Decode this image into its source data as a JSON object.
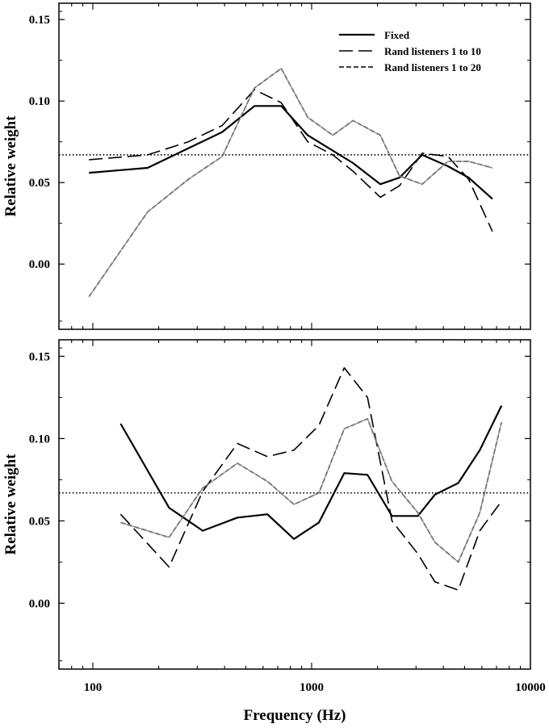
{
  "chart_data": [
    {
      "type": "line",
      "panel": "top",
      "title": "",
      "xlabel": "",
      "ylabel": "Relative weight",
      "xscale": "log",
      "xlim": [
        70,
        10000
      ],
      "ylim": [
        -0.04,
        0.16
      ],
      "yticks": [
        "0.00",
        "0.05",
        "0.10",
        "0.15"
      ],
      "xticks": [],
      "legend_position": "top-right",
      "legend": [
        "Fixed",
        "Rand listeners 1 to 10",
        "Rand listeners 1 to 20"
      ],
      "reference_line": {
        "y": 0.067,
        "style": "dotted"
      },
      "series": [
        {
          "name": "Fixed",
          "style": "solid",
          "x": [
            96,
            178,
            273,
            390,
            548,
            726,
            960,
            1545,
            2060,
            2520,
            3200,
            4200,
            5220,
            6700
          ],
          "y": [
            0.056,
            0.059,
            0.071,
            0.081,
            0.097,
            0.097,
            0.079,
            0.062,
            0.049,
            0.053,
            0.067,
            0.06,
            0.053,
            0.04
          ]
        },
        {
          "name": "Rand listeners 1 to 10",
          "style": "long-dash",
          "x": [
            96,
            178,
            273,
            390,
            548,
            726,
            960,
            1250,
            1545,
            2060,
            2520,
            3200,
            4200,
            5220,
            6700
          ],
          "y": [
            0.064,
            0.067,
            0.075,
            0.085,
            0.107,
            0.099,
            0.075,
            0.067,
            0.057,
            0.041,
            0.048,
            0.068,
            0.066,
            0.052,
            0.02
          ]
        },
        {
          "name": "Rand listeners 1 to 20",
          "style": "short-dash",
          "x": [
            96,
            178,
            273,
            390,
            548,
            726,
            960,
            1250,
            1545,
            2060,
            2520,
            3200,
            4200,
            5220,
            6700
          ],
          "y": [
            -0.02,
            0.032,
            0.052,
            0.066,
            0.108,
            0.12,
            0.09,
            0.079,
            0.088,
            0.079,
            0.054,
            0.049,
            0.063,
            0.063,
            0.059
          ]
        }
      ]
    },
    {
      "type": "line",
      "panel": "bottom",
      "title": "",
      "xlabel": "Frequency (Hz)",
      "ylabel": "Relative weight",
      "xscale": "log",
      "xlim": [
        70,
        10000
      ],
      "ylim": [
        -0.04,
        0.16
      ],
      "yticks": [
        "0.00",
        "0.05",
        "0.10",
        "0.15"
      ],
      "xticks": [
        "100",
        "1000",
        "10000"
      ],
      "reference_line": {
        "y": 0.067,
        "style": "dotted"
      },
      "series": [
        {
          "name": "Fixed",
          "style": "solid",
          "x": [
            134,
            223,
            318,
            458,
            628,
            830,
            1080,
            1410,
            1800,
            2330,
            3060,
            3660,
            4680,
            5870,
            7380
          ],
          "y": [
            0.109,
            0.058,
            0.044,
            0.052,
            0.054,
            0.039,
            0.049,
            0.079,
            0.078,
            0.053,
            0.053,
            0.066,
            0.073,
            0.093,
            0.12
          ]
        },
        {
          "name": "Rand listeners 1 to 10",
          "style": "long-dash",
          "x": [
            134,
            223,
            318,
            458,
            628,
            830,
            1080,
            1410,
            1800,
            2330,
            3060,
            3660,
            4680,
            5870,
            7380
          ],
          "y": [
            0.054,
            0.022,
            0.068,
            0.097,
            0.089,
            0.093,
            0.108,
            0.143,
            0.125,
            0.05,
            0.03,
            0.013,
            0.008,
            0.044,
            0.062
          ]
        },
        {
          "name": "Rand listeners 1 to 20",
          "style": "short-dash",
          "x": [
            134,
            223,
            318,
            458,
            628,
            830,
            1080,
            1410,
            1800,
            2330,
            3060,
            3660,
            4680,
            5870,
            7380
          ],
          "y": [
            0.049,
            0.04,
            0.07,
            0.085,
            0.074,
            0.06,
            0.067,
            0.106,
            0.112,
            0.074,
            0.055,
            0.037,
            0.025,
            0.055,
            0.11
          ]
        }
      ]
    }
  ]
}
